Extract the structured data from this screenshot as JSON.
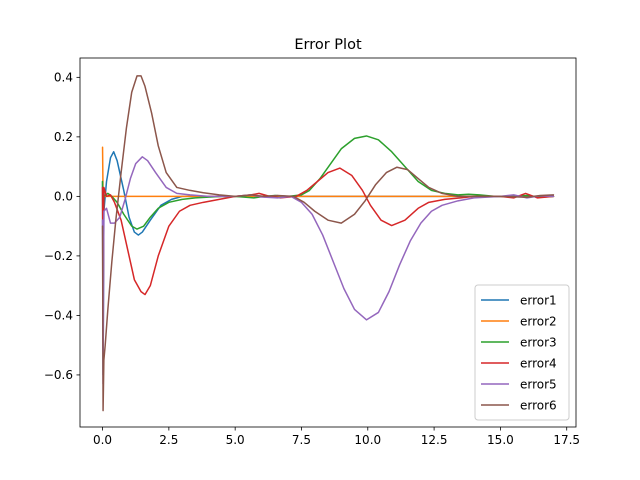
{
  "chart_data": {
    "type": "line",
    "title": "Error Plot",
    "xlabel": "",
    "ylabel": "",
    "xlim": [
      -0.85,
      17.85
    ],
    "ylim": [
      -0.775,
      0.465
    ],
    "x_ticks": [
      0.0,
      2.5,
      5.0,
      7.5,
      10.0,
      12.5,
      15.0,
      17.5
    ],
    "x_tick_labels": [
      "0.0",
      "2.5",
      "5.0",
      "7.5",
      "10.0",
      "12.5",
      "15.0",
      "17.5"
    ],
    "y_ticks": [
      -0.6,
      -0.4,
      -0.2,
      0.0,
      0.2,
      0.4
    ],
    "y_tick_labels": [
      "−0.6",
      "−0.4",
      "−0.2",
      "0.0",
      "0.2",
      "0.4"
    ],
    "grid": false,
    "legend_position": "bottom-right",
    "series": [
      {
        "name": "error1",
        "color": "#1f77b4",
        "points": [
          [
            0,
            0.05
          ],
          [
            0.02,
            -0.6
          ],
          [
            0.05,
            -0.05
          ],
          [
            0.15,
            0.05
          ],
          [
            0.3,
            0.13
          ],
          [
            0.42,
            0.15
          ],
          [
            0.55,
            0.12
          ],
          [
            0.8,
            0.02
          ],
          [
            1.0,
            -0.07
          ],
          [
            1.2,
            -0.12
          ],
          [
            1.35,
            -0.13
          ],
          [
            1.5,
            -0.12
          ],
          [
            1.8,
            -0.08
          ],
          [
            2.2,
            -0.03
          ],
          [
            2.6,
            -0.01
          ],
          [
            3.0,
            0.0
          ],
          [
            17.0,
            0.0
          ]
        ]
      },
      {
        "name": "error2",
        "color": "#ff7f0e",
        "points": [
          [
            0,
            0.165
          ],
          [
            0.02,
            0.0
          ],
          [
            17.0,
            0.0
          ]
        ]
      },
      {
        "name": "error3",
        "color": "#2ca02c",
        "points": [
          [
            0,
            0.05
          ],
          [
            0.02,
            -0.38
          ],
          [
            0.05,
            0.0
          ],
          [
            0.2,
            0.01
          ],
          [
            0.35,
            0.0
          ],
          [
            0.55,
            -0.02
          ],
          [
            0.8,
            -0.06
          ],
          [
            1.1,
            -0.1
          ],
          [
            1.3,
            -0.11
          ],
          [
            1.55,
            -0.1
          ],
          [
            1.8,
            -0.07
          ],
          [
            2.1,
            -0.04
          ],
          [
            2.5,
            -0.02
          ],
          [
            3.0,
            -0.01
          ],
          [
            3.5,
            -0.005
          ],
          [
            4.5,
            0.0
          ],
          [
            5.0,
            0.0
          ],
          [
            5.7,
            -0.005
          ],
          [
            6.1,
            0.0
          ],
          [
            6.5,
            0.003
          ],
          [
            7.0,
            0.0
          ],
          [
            7.5,
            0.005
          ],
          [
            7.8,
            0.02
          ],
          [
            8.2,
            0.06
          ],
          [
            8.6,
            0.11
          ],
          [
            9.0,
            0.16
          ],
          [
            9.5,
            0.195
          ],
          [
            9.95,
            0.203
          ],
          [
            10.4,
            0.19
          ],
          [
            10.9,
            0.15
          ],
          [
            11.4,
            0.1
          ],
          [
            11.9,
            0.05
          ],
          [
            12.4,
            0.02
          ],
          [
            12.9,
            0.01
          ],
          [
            13.4,
            0.005
          ],
          [
            13.8,
            0.007
          ],
          [
            14.2,
            0.005
          ],
          [
            14.8,
            0.0
          ],
          [
            15.5,
            0.0
          ],
          [
            16.0,
            0.003
          ],
          [
            16.5,
            -0.003
          ],
          [
            17.0,
            0.0
          ]
        ]
      },
      {
        "name": "error4",
        "color": "#d62728",
        "points": [
          [
            0,
            0.03
          ],
          [
            0.02,
            -0.4
          ],
          [
            0.05,
            0.03
          ],
          [
            0.15,
            0.0
          ],
          [
            0.3,
            0.005
          ],
          [
            0.45,
            -0.02
          ],
          [
            0.7,
            -0.08
          ],
          [
            0.95,
            -0.18
          ],
          [
            1.2,
            -0.28
          ],
          [
            1.45,
            -0.32
          ],
          [
            1.6,
            -0.33
          ],
          [
            1.8,
            -0.3
          ],
          [
            2.1,
            -0.2
          ],
          [
            2.5,
            -0.1
          ],
          [
            2.9,
            -0.05
          ],
          [
            3.3,
            -0.03
          ],
          [
            3.8,
            -0.02
          ],
          [
            4.4,
            -0.01
          ],
          [
            5.0,
            0.0
          ],
          [
            5.6,
            0.005
          ],
          [
            5.9,
            0.01
          ],
          [
            6.3,
            0.0
          ],
          [
            6.7,
            -0.005
          ],
          [
            7.3,
            0.0
          ],
          [
            7.7,
            0.02
          ],
          [
            8.1,
            0.05
          ],
          [
            8.5,
            0.08
          ],
          [
            8.95,
            0.095
          ],
          [
            9.4,
            0.07
          ],
          [
            9.8,
            0.02
          ],
          [
            10.1,
            -0.03
          ],
          [
            10.5,
            -0.08
          ],
          [
            10.9,
            -0.098
          ],
          [
            11.4,
            -0.08
          ],
          [
            11.9,
            -0.04
          ],
          [
            12.3,
            -0.02
          ],
          [
            12.9,
            -0.01
          ],
          [
            13.5,
            -0.005
          ],
          [
            14.0,
            0.0
          ],
          [
            15.0,
            0.0
          ],
          [
            15.5,
            -0.005
          ],
          [
            15.95,
            0.01
          ],
          [
            16.4,
            -0.005
          ],
          [
            17.0,
            0.0
          ]
        ]
      },
      {
        "name": "error5",
        "color": "#9467bd",
        "points": [
          [
            0,
            -0.08
          ],
          [
            0.02,
            -0.63
          ],
          [
            0.05,
            -0.05
          ],
          [
            0.15,
            -0.04
          ],
          [
            0.3,
            -0.09
          ],
          [
            0.45,
            -0.09
          ],
          [
            0.65,
            -0.07
          ],
          [
            0.85,
            -0.01
          ],
          [
            1.05,
            0.06
          ],
          [
            1.25,
            0.11
          ],
          [
            1.5,
            0.133
          ],
          [
            1.7,
            0.12
          ],
          [
            2.0,
            0.08
          ],
          [
            2.4,
            0.03
          ],
          [
            2.8,
            0.01
          ],
          [
            3.3,
            0.005
          ],
          [
            4.0,
            0.0
          ],
          [
            5.0,
            0.0
          ],
          [
            5.6,
            0.005
          ],
          [
            6.0,
            -0.002
          ],
          [
            6.6,
            -0.005
          ],
          [
            7.1,
            0.0
          ],
          [
            7.5,
            -0.02
          ],
          [
            7.9,
            -0.06
          ],
          [
            8.3,
            -0.13
          ],
          [
            8.7,
            -0.22
          ],
          [
            9.1,
            -0.31
          ],
          [
            9.5,
            -0.38
          ],
          [
            9.95,
            -0.415
          ],
          [
            10.4,
            -0.39
          ],
          [
            10.8,
            -0.32
          ],
          [
            11.2,
            -0.23
          ],
          [
            11.6,
            -0.15
          ],
          [
            12.0,
            -0.09
          ],
          [
            12.4,
            -0.05
          ],
          [
            12.8,
            -0.03
          ],
          [
            13.4,
            -0.015
          ],
          [
            14.0,
            -0.005
          ],
          [
            15.0,
            0.0
          ],
          [
            15.5,
            0.005
          ],
          [
            16.0,
            -0.005
          ],
          [
            16.5,
            0.002
          ],
          [
            17.0,
            0.0
          ]
        ]
      },
      {
        "name": "error6",
        "color": "#8c564b",
        "points": [
          [
            0,
            -0.1
          ],
          [
            0.02,
            -0.72
          ],
          [
            0.05,
            -0.55
          ],
          [
            0.1,
            -0.5
          ],
          [
            0.2,
            -0.38
          ],
          [
            0.35,
            -0.22
          ],
          [
            0.5,
            -0.08
          ],
          [
            0.7,
            0.08
          ],
          [
            0.9,
            0.23
          ],
          [
            1.1,
            0.35
          ],
          [
            1.3,
            0.405
          ],
          [
            1.45,
            0.405
          ],
          [
            1.6,
            0.37
          ],
          [
            1.85,
            0.28
          ],
          [
            2.1,
            0.17
          ],
          [
            2.4,
            0.08
          ],
          [
            2.8,
            0.03
          ],
          [
            3.3,
            0.02
          ],
          [
            3.8,
            0.012
          ],
          [
            4.4,
            0.005
          ],
          [
            5.0,
            0.0
          ],
          [
            5.6,
            0.005
          ],
          [
            6.1,
            0.0
          ],
          [
            6.6,
            0.003
          ],
          [
            7.2,
            0.0
          ],
          [
            7.6,
            -0.02
          ],
          [
            8.0,
            -0.05
          ],
          [
            8.5,
            -0.08
          ],
          [
            9.0,
            -0.09
          ],
          [
            9.5,
            -0.06
          ],
          [
            9.9,
            -0.015
          ],
          [
            10.3,
            0.04
          ],
          [
            10.7,
            0.08
          ],
          [
            11.1,
            0.098
          ],
          [
            11.5,
            0.09
          ],
          [
            11.9,
            0.06
          ],
          [
            12.3,
            0.03
          ],
          [
            12.8,
            0.01
          ],
          [
            13.4,
            0.0
          ],
          [
            14.0,
            0.0
          ],
          [
            15.0,
            0.0
          ],
          [
            16.0,
            -0.003
          ],
          [
            16.5,
            0.003
          ],
          [
            17.0,
            0.005
          ]
        ]
      }
    ]
  }
}
